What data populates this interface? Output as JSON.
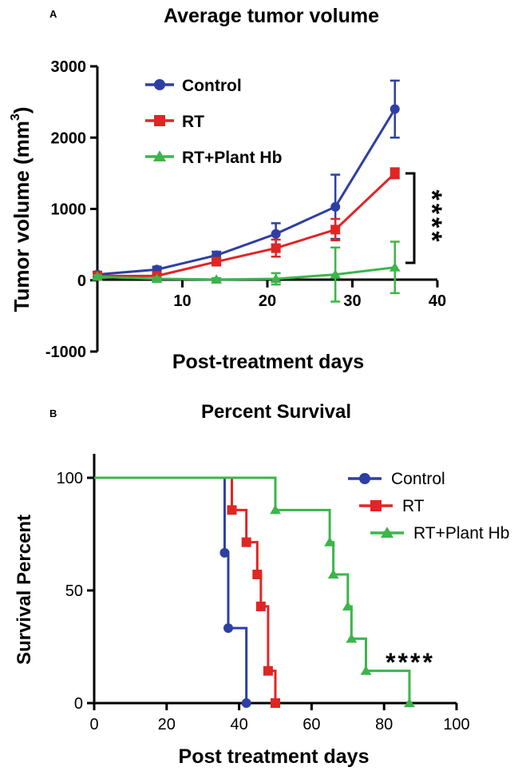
{
  "panels": {
    "a": {
      "letter": "A"
    },
    "b": {
      "letter": "B"
    }
  },
  "chart_data": [
    {
      "type": "line",
      "title": "Average tumor volume",
      "ylabel": "Tumor volume (mm",
      "ylabel_sup": "3",
      "ylabel_close": ")",
      "xlabel": "Post-treatment days",
      "xlim": [
        0,
        40
      ],
      "ylim": [
        -1000,
        3000
      ],
      "xticks": [
        10,
        20,
        30,
        40
      ],
      "yticks": [
        -1000,
        0,
        1000,
        2000,
        3000
      ],
      "grid": false,
      "legend_position": "top-left",
      "annotation": "****",
      "series": [
        {
          "name": "Control",
          "color": "#2e3fa3",
          "marker": "circle",
          "x": [
            0,
            7,
            14,
            21,
            28,
            35
          ],
          "y": [
            80,
            150,
            350,
            650,
            1030,
            2400
          ],
          "err": [
            40,
            40,
            50,
            150,
            450,
            400
          ]
        },
        {
          "name": "RT",
          "color": "#e02525",
          "marker": "square",
          "x": [
            0,
            7,
            14,
            21,
            28,
            35
          ],
          "y": [
            60,
            60,
            260,
            450,
            710,
            1500
          ],
          "err": [
            30,
            30,
            50,
            120,
            150,
            70
          ]
        },
        {
          "name": "RT+Plant Hb",
          "color": "#3cb54a",
          "marker": "triangle",
          "x": [
            0,
            7,
            14,
            21,
            28,
            35
          ],
          "y": [
            50,
            20,
            10,
            20,
            80,
            180
          ],
          "err": [
            20,
            20,
            20,
            80,
            380,
            360
          ]
        }
      ]
    },
    {
      "type": "line",
      "title": "Percent Survival",
      "ylabel": "Survival Percent",
      "xlabel": "Post treatment days",
      "xlim": [
        0,
        100
      ],
      "ylim": [
        0,
        100
      ],
      "xticks": [
        0,
        20,
        40,
        60,
        80,
        100
      ],
      "yticks": [
        0,
        50,
        100
      ],
      "grid": false,
      "legend_position": "top-right",
      "annotation": "****",
      "series": [
        {
          "name": "Control",
          "color": "#2e3fa3",
          "marker": "circle",
          "steps": [
            [
              0,
              100
            ],
            [
              36,
              66.7
            ],
            [
              37,
              33.3
            ],
            [
              42,
              0
            ]
          ]
        },
        {
          "name": "RT",
          "color": "#e02525",
          "marker": "square",
          "steps": [
            [
              0,
              100
            ],
            [
              38,
              85.7
            ],
            [
              42,
              71.4
            ],
            [
              45,
              57.1
            ],
            [
              46,
              42.9
            ],
            [
              48,
              14.3
            ],
            [
              50,
              0
            ]
          ]
        },
        {
          "name": "RT+Plant Hb",
          "color": "#3cb54a",
          "marker": "triangle",
          "steps": [
            [
              0,
              100
            ],
            [
              50,
              85.7
            ],
            [
              65,
              71.4
            ],
            [
              66,
              57.1
            ],
            [
              70,
              42.9
            ],
            [
              71,
              28.6
            ],
            [
              75,
              14.3
            ],
            [
              87,
              0
            ]
          ]
        }
      ]
    }
  ]
}
